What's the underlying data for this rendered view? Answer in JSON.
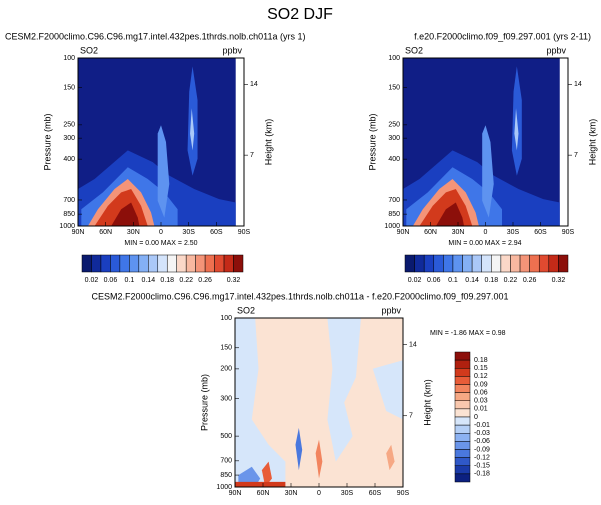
{
  "title": "SO2 DJF",
  "chart_data": [
    {
      "type": "contour",
      "title": "CESM2.F2000climo.C96.C96.mg17.intel.432pes.1thrds.nolb.ch011a (yrs 1)",
      "variable": "SO2",
      "units": "ppbv",
      "ylabel": "Pressure (mb)",
      "y2label": "Height (km)",
      "ylim": [
        1000,
        100
      ],
      "log_y": true,
      "yticks": [
        100,
        150,
        250,
        300,
        400,
        700,
        850,
        1000
      ],
      "y2lim": [
        0,
        16.6
      ],
      "y2ticks": [
        14,
        7
      ],
      "xlim": [
        90,
        -90
      ],
      "xticks": [
        {
          "value": 90,
          "label": "90N"
        },
        {
          "value": 60,
          "label": "60N"
        },
        {
          "value": 30,
          "label": "30N"
        },
        0,
        {
          "value": -30,
          "label": "30S"
        },
        {
          "value": -60,
          "label": "60S"
        },
        {
          "value": -90,
          "label": "90S"
        }
      ],
      "stats": "MIN =  0.00   MAX =  2.50",
      "colorbar": {
        "lim": [
          0,
          0.34
        ],
        "colors": [
          "#0a1a6e",
          "#102a9a",
          "#1a3fc0",
          "#2a5ad8",
          "#3f76e8",
          "#5e93f0",
          "#84b0f5",
          "#aac8f8",
          "#d4e4fb",
          "#f5f5f5",
          "#fbd8c8",
          "#f8b8a0",
          "#f49478",
          "#ee7050",
          "#e04a30",
          "#c42a18",
          "#8c0f0a"
        ],
        "ticks": [
          0.02,
          0.06,
          0.1,
          0.14,
          0.18,
          0.22,
          0.26,
          0.32
        ]
      }
    },
    {
      "type": "contour",
      "title": "f.e20.F2000climo.f09_f09.297.001 (yrs 2-11)",
      "variable": "SO2",
      "units": "ppbv",
      "ylabel": "Pressure (mb)",
      "y2label": "Height (km)",
      "ylim": [
        1000,
        100
      ],
      "log_y": true,
      "yticks": [
        100,
        150,
        250,
        300,
        400,
        700,
        850,
        1000
      ],
      "y2lim": [
        0,
        16.6
      ],
      "y2ticks": [
        14,
        7
      ],
      "xlim": [
        90,
        -90
      ],
      "xticks": [
        {
          "value": 90,
          "label": "90N"
        },
        {
          "value": 60,
          "label": "60N"
        },
        {
          "value": 30,
          "label": "30N"
        },
        0,
        {
          "value": -30,
          "label": "30S"
        },
        {
          "value": -60,
          "label": "60S"
        },
        {
          "value": -90,
          "label": "90S"
        }
      ],
      "stats": "MIN =  0.00   MAX =  2.94",
      "colorbar": {
        "lim": [
          0,
          0.34
        ],
        "colors": [
          "#0a1a6e",
          "#102a9a",
          "#1a3fc0",
          "#2a5ad8",
          "#3f76e8",
          "#5e93f0",
          "#84b0f5",
          "#aac8f8",
          "#d4e4fb",
          "#f5f5f5",
          "#fbd8c8",
          "#f8b8a0",
          "#f49478",
          "#ee7050",
          "#e04a30",
          "#c42a18",
          "#8c0f0a"
        ],
        "ticks": [
          0.02,
          0.06,
          0.1,
          0.14,
          0.18,
          0.22,
          0.26,
          0.32
        ]
      }
    },
    {
      "type": "contour",
      "title": "CESM2.F2000climo.C96.C96.mg17.intel.432pes.1thrds.nolb.ch011a - f.e20.F2000climo.f09_f09.297.001",
      "variable": "SO2",
      "units": "ppbv",
      "ylabel": "Pressure (mb)",
      "y2label": "Height (km)",
      "ylim": [
        1000,
        100
      ],
      "log_y": true,
      "yticks": [
        100,
        150,
        200,
        300,
        500,
        700,
        850,
        1000
      ],
      "y2lim": [
        0,
        16.6
      ],
      "y2ticks": [
        14,
        7
      ],
      "xlim": [
        90,
        -90
      ],
      "xticks": [
        {
          "value": 90,
          "label": "90N"
        },
        {
          "value": 60,
          "label": "60N"
        },
        {
          "value": 30,
          "label": "30N"
        },
        0,
        {
          "value": -30,
          "label": "30S"
        },
        {
          "value": -60,
          "label": "60S"
        },
        {
          "value": -90,
          "label": "90S"
        }
      ],
      "stats": "MIN = -1.86  MAX =  0.98",
      "colorbar": {
        "colors": [
          "#8c0f0a",
          "#b0200f",
          "#d23a1c",
          "#e85c38",
          "#f2845e",
          "#f6a884",
          "#f9c8ae",
          "#fbe3d3",
          "#d6e6fa",
          "#b4cff6",
          "#8cb2f2",
          "#6a95ea",
          "#4a78de",
          "#2f58c8",
          "#1a3aa8",
          "#0c2080"
        ],
        "ticks": [
          0.18,
          0.15,
          0.12,
          0.09,
          0.06,
          0.03,
          0.01,
          0,
          -0.01,
          -0.03,
          -0.06,
          -0.09,
          -0.12,
          -0.15,
          -0.18
        ]
      }
    }
  ]
}
